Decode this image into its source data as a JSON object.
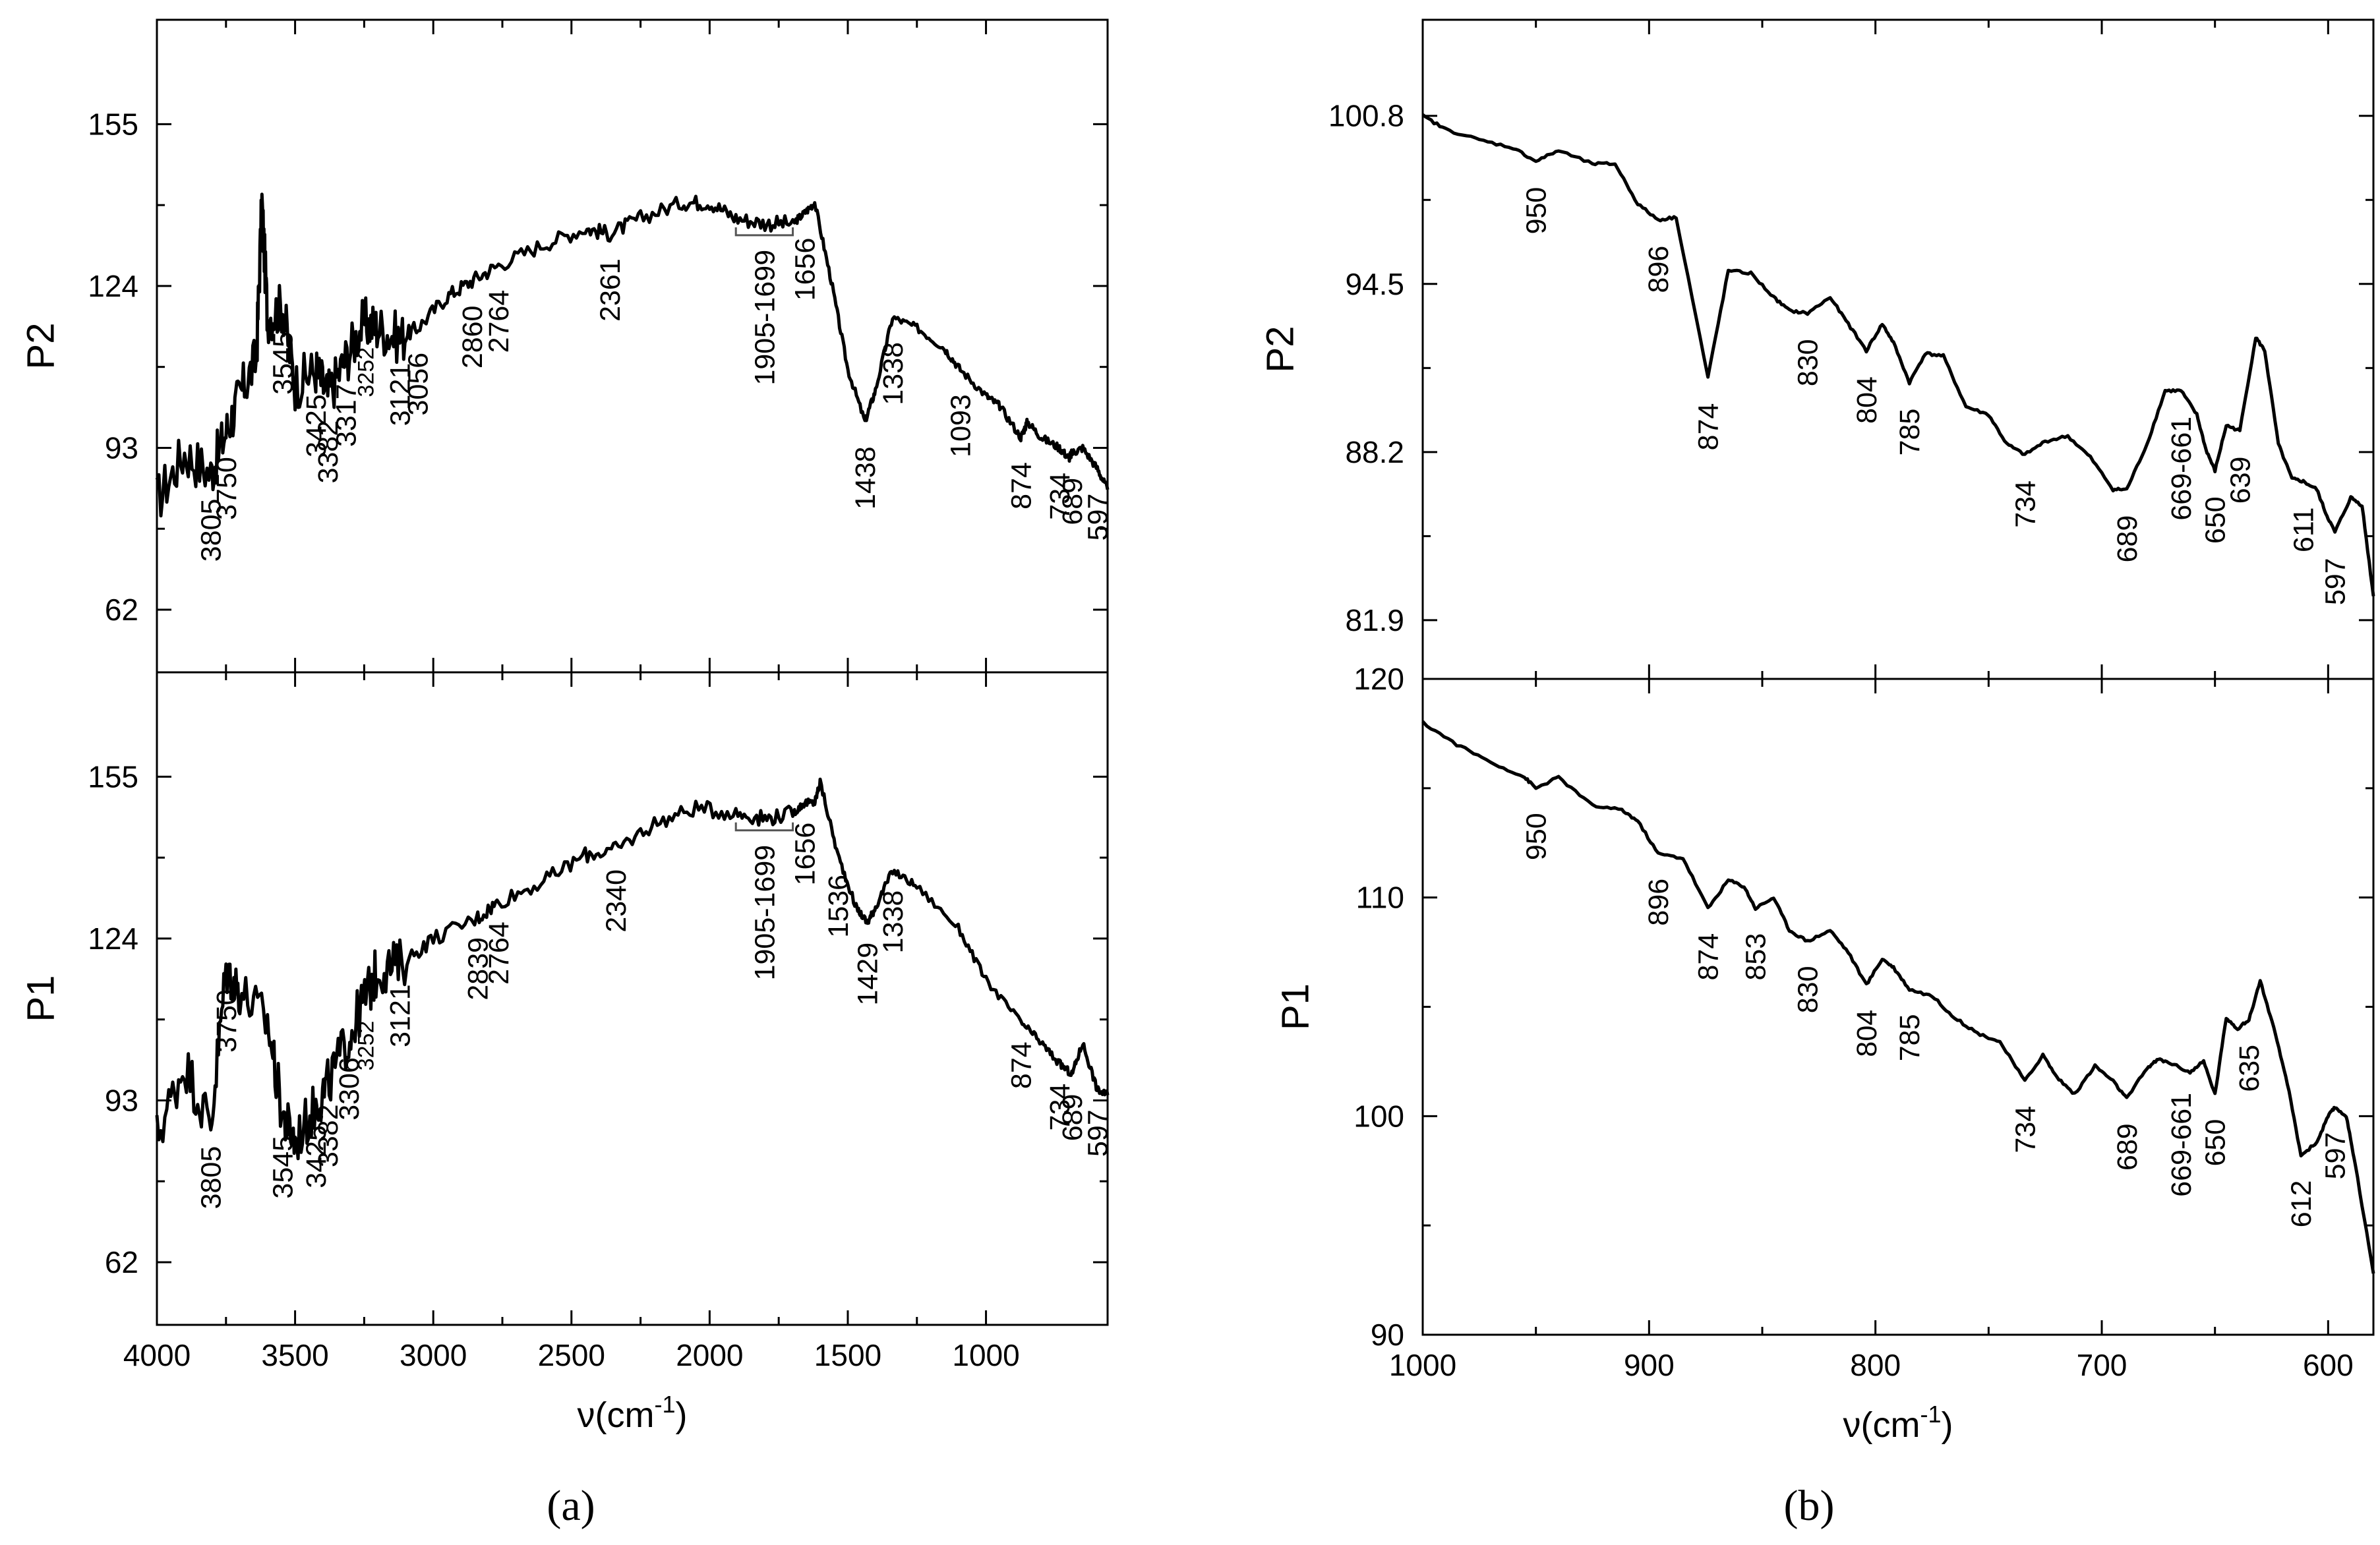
{
  "colors": {
    "line": "#000000",
    "background": "#ffffff"
  },
  "captions": {
    "a": "(a)",
    "b": "(b)"
  },
  "xlabel_parts": {
    "nu": "ν(cm",
    "exp": "-1",
    "close": ")"
  },
  "chart_data": [
    {
      "id": "a-P2",
      "type": "line",
      "title": "",
      "ylabel": "P2",
      "xlabel": "",
      "xlim": [
        4000,
        560
      ],
      "ylim": [
        50,
        175
      ],
      "yticks": [
        62,
        93,
        124,
        155
      ],
      "xticks": [
        4000,
        3500,
        3000,
        2500,
        2000,
        1500,
        1000
      ],
      "show_xticklabels": false,
      "x": [
        4000,
        3900,
        3805,
        3750,
        3700,
        3640,
        3620,
        3600,
        3545,
        3500,
        3425,
        3382,
        3317,
        3252,
        3200,
        3121,
        3056,
        2950,
        2860,
        2764,
        2600,
        2450,
        2361,
        2250,
        2100,
        2000,
        1905,
        1800,
        1699,
        1656,
        1620,
        1560,
        1500,
        1438,
        1400,
        1338,
        1250,
        1150,
        1093,
        1000,
        950,
        874,
        850,
        800,
        734,
        700,
        689,
        650,
        597,
        560
      ],
      "y": [
        83,
        92,
        88,
        96,
        103,
        110,
        140,
        118,
        120,
        105,
        108,
        103,
        110,
        117,
        116,
        114,
        116,
        122,
        125,
        128,
        132,
        135,
        134,
        137,
        140,
        140,
        137,
        136,
        136,
        138,
        140,
        125,
        108,
        98,
        104,
        118,
        116,
        112,
        108,
        103,
        101,
        95,
        98,
        95,
        93,
        91,
        92,
        93,
        89,
        85
      ],
      "annotations": [
        {
          "label": "3805",
          "x": 3805
        },
        {
          "label": "3750",
          "x": 3750
        },
        {
          "label": "3545",
          "x": 3545
        },
        {
          "label": "3425",
          "x": 3425
        },
        {
          "label": "3382",
          "x": 3382
        },
        {
          "label": "3317",
          "x": 3317
        },
        {
          "label": "3252",
          "x": 3252
        },
        {
          "label": "3121",
          "x": 3121
        },
        {
          "label": "3056",
          "x": 3056
        },
        {
          "label": "2860",
          "x": 2860
        },
        {
          "label": "2764",
          "x": 2764
        },
        {
          "label": "2361",
          "x": 2361
        },
        {
          "label": "1905-1699",
          "x": 1802
        },
        {
          "label": "1656",
          "x": 1656
        },
        {
          "label": "1438",
          "x": 1438
        },
        {
          "label": "1338",
          "x": 1338
        },
        {
          "label": "1093",
          "x": 1093
        },
        {
          "label": "874",
          "x": 874
        },
        {
          "label": "734",
          "x": 734
        },
        {
          "label": "689",
          "x": 689
        },
        {
          "label": "597",
          "x": 597
        }
      ]
    },
    {
      "id": "a-P1",
      "type": "line",
      "title": "",
      "ylabel": "P1",
      "xlabel": "ν(cm-1)",
      "xlim": [
        4000,
        560
      ],
      "ylim": [
        50,
        175
      ],
      "yticks": [
        62,
        93,
        124,
        155
      ],
      "xticks": [
        4000,
        3500,
        3000,
        2500,
        2000,
        1500,
        1000
      ],
      "show_xticklabels": true,
      "x": [
        4000,
        3900,
        3805,
        3750,
        3700,
        3600,
        3545,
        3500,
        3425,
        3382,
        3306,
        3252,
        3200,
        3121,
        3000,
        2839,
        2764,
        2600,
        2450,
        2340,
        2200,
        2050,
        1905,
        1800,
        1699,
        1656,
        1620,
        1600,
        1536,
        1470,
        1429,
        1400,
        1338,
        1250,
        1100,
        1000,
        874,
        800,
        734,
        689,
        650,
        597,
        560
      ],
      "y": [
        86,
        100,
        88,
        118,
        114,
        108,
        90,
        85,
        92,
        96,
        105,
        112,
        118,
        119,
        124,
        128,
        131,
        135,
        140,
        141,
        146,
        149,
        148,
        147,
        148,
        150,
        150,
        154,
        140,
        130,
        127,
        130,
        137,
        134,
        126,
        116,
        108,
        104,
        100,
        98,
        104,
        95,
        94
      ],
      "annotations": [
        {
          "label": "3805",
          "x": 3805
        },
        {
          "label": "3750",
          "x": 3750
        },
        {
          "label": "3545",
          "x": 3545
        },
        {
          "label": "3425",
          "x": 3425
        },
        {
          "label": "3382",
          "x": 3382
        },
        {
          "label": "3306",
          "x": 3306
        },
        {
          "label": "3252",
          "x": 3252
        },
        {
          "label": "3121",
          "x": 3121
        },
        {
          "label": "2839",
          "x": 2839
        },
        {
          "label": "2764",
          "x": 2764
        },
        {
          "label": "2340",
          "x": 2340
        },
        {
          "label": "1905-1699",
          "x": 1802
        },
        {
          "label": "1656",
          "x": 1656
        },
        {
          "label": "1536",
          "x": 1536
        },
        {
          "label": "1429",
          "x": 1429
        },
        {
          "label": "1338",
          "x": 1338
        },
        {
          "label": "874",
          "x": 874
        },
        {
          "label": "734",
          "x": 734
        },
        {
          "label": "689",
          "x": 689
        },
        {
          "label": "597",
          "x": 597
        }
      ]
    },
    {
      "id": "b-P2",
      "type": "line",
      "title": "",
      "ylabel": "P2",
      "xlabel": "",
      "xlim": [
        1000,
        580
      ],
      "ylim": [
        79.7,
        104.4
      ],
      "yticks": [
        81.9,
        88.2,
        94.5,
        100.8
      ],
      "ytick_labels": [
        "81.9",
        "88.2",
        "94.5",
        "100.8"
      ],
      "xticks": [
        1000,
        900,
        800,
        700,
        600
      ],
      "show_xticklabels": false,
      "x": [
        1000,
        990,
        975,
        960,
        950,
        940,
        925,
        915,
        905,
        896,
        888,
        874,
        865,
        855,
        845,
        838,
        830,
        820,
        812,
        804,
        797,
        792,
        785,
        778,
        770,
        760,
        750,
        742,
        734,
        725,
        715,
        705,
        695,
        689,
        680,
        672,
        665,
        658,
        654,
        650,
        645,
        639,
        632,
        628,
        622,
        616,
        611,
        605,
        601,
        597,
        590,
        585,
        580
      ],
      "y": [
        100.8,
        100.3,
        99.9,
        99.6,
        99.1,
        99.5,
        99.0,
        99.0,
        97.5,
        96.9,
        97.0,
        91.0,
        95.0,
        94.9,
        94.0,
        93.5,
        93.4,
        94.0,
        93.0,
        92.0,
        93.0,
        92.3,
        90.8,
        91.9,
        91.8,
        89.9,
        89.6,
        88.5,
        88.1,
        88.6,
        88.8,
        88.0,
        86.8,
        86.8,
        88.5,
        90.5,
        90.5,
        89.6,
        88.3,
        87.5,
        89.2,
        89.0,
        92.5,
        92.0,
        88.5,
        87.2,
        87.1,
        86.8,
        85.9,
        85.2,
        86.5,
        86.2,
        82.8
      ],
      "annotations": [
        {
          "label": "950",
          "x": 950
        },
        {
          "label": "896",
          "x": 896
        },
        {
          "label": "874",
          "x": 874
        },
        {
          "label": "830",
          "x": 830
        },
        {
          "label": "804",
          "x": 804
        },
        {
          "label": "785",
          "x": 785
        },
        {
          "label": "734",
          "x": 734
        },
        {
          "label": "689",
          "x": 689
        },
        {
          "label": "669-661",
          "x": 665
        },
        {
          "label": "650",
          "x": 650
        },
        {
          "label": "639",
          "x": 639
        },
        {
          "label": "611",
          "x": 611
        },
        {
          "label": "597",
          "x": 597
        }
      ]
    },
    {
      "id": "b-P1",
      "type": "line",
      "title": "",
      "ylabel": "P1",
      "xlabel": "ν(cm-1)",
      "xlim": [
        1000,
        580
      ],
      "ylim": [
        90,
        120
      ],
      "yticks": [
        90,
        100,
        110,
        120
      ],
      "ytick_labels": [
        "90",
        "100",
        "110",
        "120"
      ],
      "xticks": [
        1000,
        900,
        800,
        700,
        600
      ],
      "show_xticklabels": true,
      "x": [
        1000,
        985,
        970,
        955,
        950,
        940,
        925,
        912,
        905,
        896,
        885,
        874,
        865,
        858,
        853,
        845,
        838,
        830,
        820,
        812,
        804,
        797,
        792,
        785,
        775,
        765,
        755,
        745,
        734,
        726,
        720,
        712,
        703,
        695,
        689,
        680,
        675,
        669,
        661,
        655,
        650,
        645,
        640,
        635,
        630,
        624,
        618,
        612,
        605,
        600,
        597,
        592,
        588,
        580
      ],
      "y": [
        118,
        117,
        116.2,
        115.5,
        115.0,
        115.5,
        114.2,
        114.0,
        113.5,
        112.0,
        111.8,
        109.5,
        110.8,
        110.5,
        109.5,
        110.0,
        108.5,
        108.0,
        108.5,
        107.5,
        106.0,
        107.2,
        106.8,
        105.8,
        105.5,
        104.5,
        103.8,
        103.4,
        101.6,
        102.8,
        101.8,
        101.0,
        102.3,
        101.6,
        100.8,
        102.2,
        102.6,
        102.4,
        102.0,
        102.5,
        101.0,
        104.5,
        104.0,
        104.4,
        106.2,
        104.0,
        101.5,
        98.2,
        98.8,
        100.0,
        100.4,
        100.0,
        97.8,
        92.8
      ],
      "annotations": [
        {
          "label": "950",
          "x": 950
        },
        {
          "label": "896",
          "x": 896
        },
        {
          "label": "874",
          "x": 874
        },
        {
          "label": "853",
          "x": 853
        },
        {
          "label": "830",
          "x": 830
        },
        {
          "label": "804",
          "x": 804
        },
        {
          "label": "785",
          "x": 785
        },
        {
          "label": "734",
          "x": 734
        },
        {
          "label": "689",
          "x": 689
        },
        {
          "label": "669-661",
          "x": 665
        },
        {
          "label": "650",
          "x": 650
        },
        {
          "label": "635",
          "x": 635
        },
        {
          "label": "612",
          "x": 612
        },
        {
          "label": "597",
          "x": 597
        }
      ]
    }
  ]
}
